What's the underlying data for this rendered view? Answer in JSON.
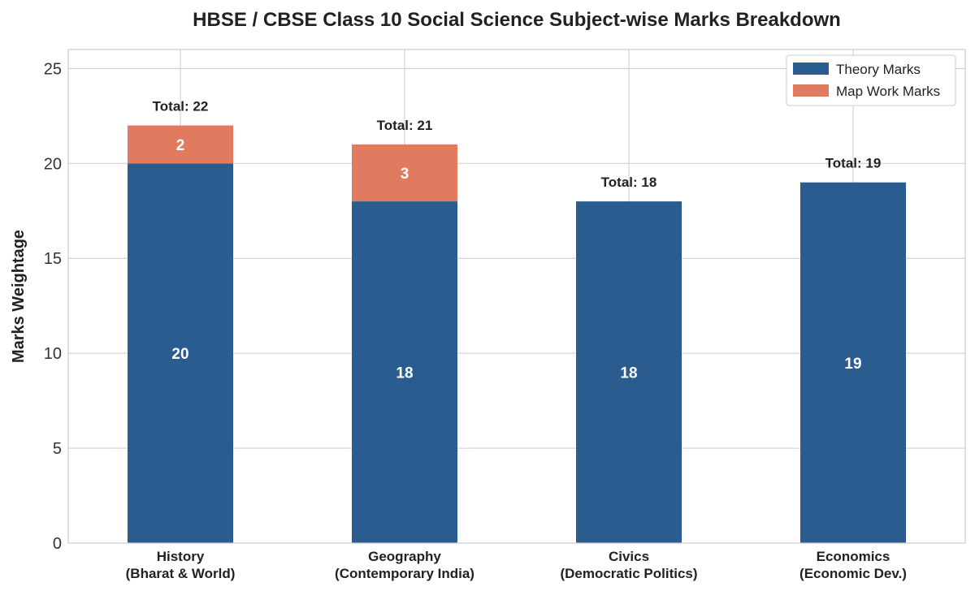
{
  "chart_data": {
    "type": "bar",
    "stacked": true,
    "title": "HBSE / CBSE Class 10 Social Science Subject-wise Marks Breakdown",
    "xlabel": "",
    "ylabel": "Marks Weightage",
    "ylim": [
      0,
      26
    ],
    "yticks": [
      0,
      5,
      10,
      15,
      20,
      25
    ],
    "grid": true,
    "legend_position": "top-right",
    "categories": [
      [
        "History",
        "(Bharat & World)"
      ],
      [
        "Geography",
        "(Contemporary India)"
      ],
      [
        "Civics",
        "(Democratic Politics)"
      ],
      [
        "Economics",
        "(Economic Dev.)"
      ]
    ],
    "series": [
      {
        "name": "Theory Marks",
        "color": "#2b5c8f",
        "values": [
          20,
          18,
          18,
          19
        ]
      },
      {
        "name": "Map Work Marks",
        "color": "#e07b5f",
        "values": [
          2,
          3,
          0,
          0
        ]
      }
    ],
    "total_label_prefix": "Total: ",
    "totals": [
      22,
      21,
      18,
      19
    ]
  }
}
